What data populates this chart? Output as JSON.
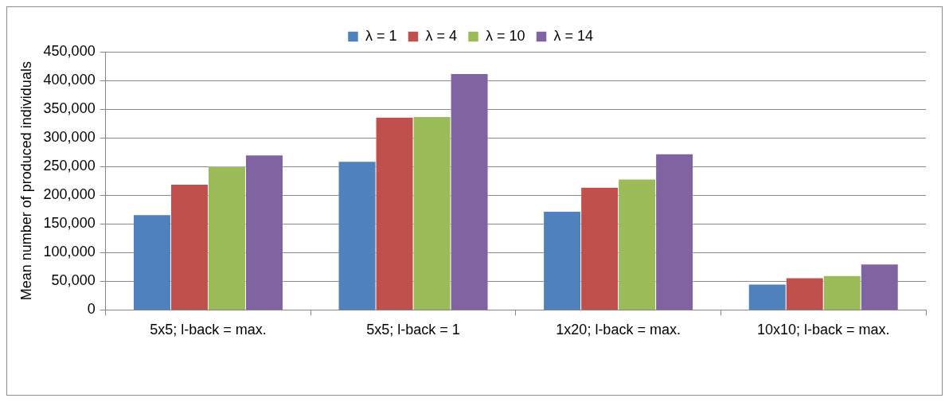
{
  "chart_data": {
    "type": "bar",
    "ylabel": "Mean number of produced individuals",
    "categories": [
      "5x5; l-back = max.",
      "5x5; l-back = 1",
      "1x20; l-back = max.",
      "10x10; l-back = max."
    ],
    "series": [
      {
        "name": "λ = 1",
        "color": "#4f81bd",
        "values": [
          166000,
          259000,
          172000,
          45000
        ]
      },
      {
        "name": "λ = 4",
        "color": "#c0504d",
        "values": [
          219000,
          336000,
          214000,
          56000
        ]
      },
      {
        "name": "λ = 10",
        "color": "#9bbb59",
        "values": [
          250000,
          337000,
          228000,
          60000
        ]
      },
      {
        "name": "λ = 14",
        "color": "#8064a2",
        "values": [
          270000,
          412000,
          272000,
          80000
        ]
      }
    ],
    "ylim": [
      0,
      450000
    ],
    "yticks": [
      0,
      {
        "value": 50000,
        "label": "50,000"
      },
      {
        "value": 100000,
        "label": "100,000"
      },
      {
        "value": 150000,
        "label": "150,000"
      },
      {
        "value": 200000,
        "label": "200,000"
      },
      {
        "value": 250000,
        "label": "250,000"
      },
      {
        "value": 300000,
        "label": "300,000"
      },
      {
        "value": 350000,
        "label": "350,000"
      },
      {
        "value": 400000,
        "label": "400,000"
      },
      {
        "value": 450000,
        "label": "450,000"
      }
    ],
    "grid": "y",
    "legend": "top"
  }
}
